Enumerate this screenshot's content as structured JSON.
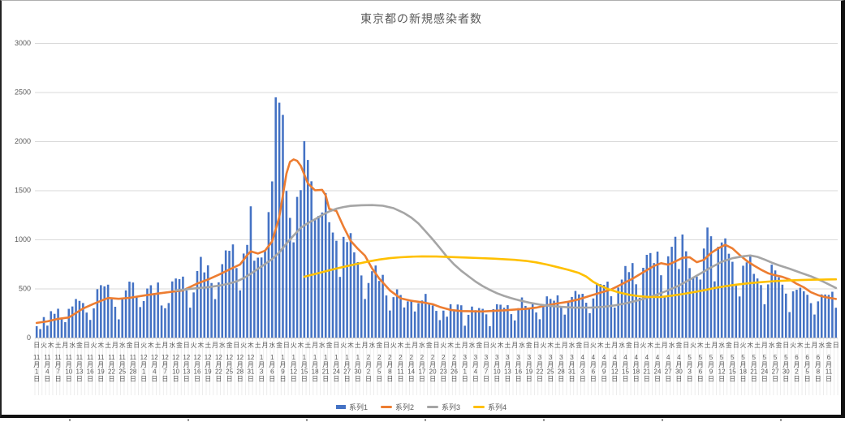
{
  "title": "東京都の新規感染者数",
  "colors": {
    "bar": "#4472C4",
    "series2": "#ED7D31",
    "series3": "#A5A5A5",
    "series4": "#FFC000",
    "gridline": "#D9D9D9",
    "axis_line": "#C6C6C6",
    "label_tick_line": "#E8E8E8",
    "text": "#595959"
  },
  "y_axis": {
    "ticks": [
      0,
      500,
      1000,
      1500,
      2000,
      2500,
      3000
    ],
    "max": 3000
  },
  "x_axis": {
    "weekday_cycle": "日火木土月水金",
    "weekday_label_count": 113,
    "weekday_step_days": 2,
    "date_step_days": 3,
    "date_labels": [
      "11月1日",
      "11月4日",
      "11月7日",
      "11月10日",
      "11月13日",
      "11月16日",
      "11月19日",
      "11月22日",
      "11月25日",
      "11月28日",
      "12月1日",
      "12月4日",
      "12月7日",
      "12月10日",
      "12月13日",
      "12月16日",
      "12月19日",
      "12月22日",
      "12月25日",
      "12月28日",
      "12月31日",
      "1月3日",
      "1月6日",
      "1月9日",
      "1月12日",
      "1月15日",
      "1月18日",
      "1月21日",
      "1月24日",
      "1月27日",
      "1月30日",
      "2月2日",
      "2月5日",
      "2月8日",
      "2月11日",
      "2月14日",
      "2月17日",
      "2月20日",
      "2月23日",
      "2月26日",
      "3月1日",
      "3月4日",
      "3月7日",
      "3月10日",
      "3月13日",
      "3月16日",
      "3月19日",
      "3月22日",
      "3月25日",
      "3月28日",
      "3月31日",
      "4月3日",
      "4月6日",
      "4月9日",
      "4月12日",
      "4月15日",
      "4月18日",
      "4月21日",
      "4月24日",
      "4月27日",
      "4月30日",
      "5月3日",
      "5月6日",
      "5月9日",
      "5月12日",
      "5月15日",
      "5月18日",
      "5月21日",
      "5月24日",
      "5月27日",
      "5月30日",
      "6月2日",
      "6月5日",
      "6月8日",
      "6月11日"
    ]
  },
  "legend": {
    "items": [
      {
        "label": "系列1",
        "type": "bar",
        "color": "#4472C4"
      },
      {
        "label": "系列2",
        "type": "line",
        "color": "#ED7D31"
      },
      {
        "label": "系列3",
        "type": "line",
        "color": "#A5A5A5"
      },
      {
        "label": "系列4",
        "type": "line",
        "color": "#FFC000"
      }
    ]
  },
  "chart_data": {
    "type": "combo-bar-line",
    "title": "東京都の新規感染者数",
    "ylim": [
      0,
      3000
    ],
    "grid": true,
    "legend_position": "bottom",
    "x_days": 225,
    "x_first_label": "11月1日",
    "bar_series": {
      "name": "系列1",
      "values": [
        116,
        87,
        209,
        122,
        269,
        242,
        294,
        189,
        157,
        293,
        317,
        393,
        374,
        352,
        255,
        180,
        298,
        493,
        534,
        522,
        539,
        391,
        314,
        186,
        401,
        481,
        570,
        561,
        418,
        311,
        372,
        500,
        533,
        449,
        561,
        327,
        299,
        352,
        572,
        602,
        595,
        621,
        480,
        305,
        460,
        678,
        822,
        664,
        736,
        556,
        392,
        563,
        748,
        888,
        884,
        949,
        708,
        481,
        856,
        944,
        1337,
        783,
        814,
        816,
        884,
        1278,
        1591,
        2447,
        2392,
        2268,
        1494,
        1219,
        970,
        1433,
        1502,
        2001,
        1809,
        1592,
        1204,
        1240,
        1274,
        1471,
        1175,
        1070,
        986,
        618,
        1026,
        973,
        1064,
        868,
        769,
        633,
        393,
        556,
        676,
        734,
        577,
        639,
        429,
        276,
        412,
        491,
        434,
        307,
        369,
        371,
        266,
        350,
        378,
        445,
        353,
        327,
        272,
        178,
        275,
        213,
        340,
        270,
        337,
        329,
        121,
        232,
        316,
        279,
        301,
        293,
        237,
        116,
        290,
        340,
        335,
        304,
        330,
        239,
        175,
        300,
        409,
        323,
        303,
        342,
        256,
        187,
        337,
        420,
        394,
        376,
        430,
        313,
        234,
        364,
        414,
        475,
        440,
        446,
        355,
        249,
        399,
        555,
        545,
        537,
        570,
        421,
        306,
        510,
        591,
        729,
        667,
        759,
        543,
        405,
        711,
        843,
        861,
        759,
        876,
        635,
        425,
        828,
        925,
        1027,
        698,
        1050,
        879,
        708,
        609,
        621,
        591,
        907,
        1121,
        1032,
        573,
        925,
        969,
        1010,
        854,
        772,
        542,
        419,
        732,
        766,
        843,
        649,
        602,
        535,
        340,
        542,
        743,
        684,
        614,
        539,
        448,
        260,
        471,
        487,
        508,
        472,
        436,
        351,
        235,
        369,
        440,
        439,
        435,
        467,
        304
      ]
    },
    "line_series": [
      {
        "name": "系列2",
        "color": "#ED7D31",
        "points": [
          [
            0,
            150
          ],
          [
            3,
            165
          ],
          [
            6,
            191
          ],
          [
            9,
            205
          ],
          [
            13,
            296
          ],
          [
            16,
            345
          ],
          [
            20,
            403
          ],
          [
            23,
            395
          ],
          [
            26,
            405
          ],
          [
            30,
            428
          ],
          [
            34,
            449
          ],
          [
            38,
            468
          ],
          [
            41,
            481
          ],
          [
            45,
            550
          ],
          [
            48,
            592
          ],
          [
            51,
            640
          ],
          [
            55,
            711
          ],
          [
            57,
            745
          ],
          [
            59,
            840
          ],
          [
            60,
            878
          ],
          [
            62,
            856
          ],
          [
            64,
            885
          ],
          [
            66,
            980
          ],
          [
            68,
            1230
          ],
          [
            70,
            1670
          ],
          [
            71,
            1790
          ],
          [
            72,
            1815
          ],
          [
            73,
            1800
          ],
          [
            74,
            1750
          ],
          [
            76,
            1570
          ],
          [
            78,
            1500
          ],
          [
            80,
            1505
          ],
          [
            81,
            1450
          ],
          [
            82,
            1310
          ],
          [
            84,
            1290
          ],
          [
            86,
            1130
          ],
          [
            88,
            985
          ],
          [
            90,
            905
          ],
          [
            92,
            835
          ],
          [
            94,
            705
          ],
          [
            96,
            601
          ],
          [
            99,
            480
          ],
          [
            102,
            400
          ],
          [
            105,
            375
          ],
          [
            108,
            360
          ],
          [
            111,
            340
          ],
          [
            113,
            312
          ],
          [
            116,
            282
          ],
          [
            119,
            270
          ],
          [
            122,
            268
          ],
          [
            125,
            266
          ],
          [
            128,
            272
          ],
          [
            131,
            278
          ],
          [
            134,
            286
          ],
          [
            137,
            292
          ],
          [
            140,
            305
          ],
          [
            143,
            330
          ],
          [
            146,
            348
          ],
          [
            149,
            365
          ],
          [
            152,
            390
          ],
          [
            155,
            425
          ],
          [
            158,
            458
          ],
          [
            161,
            490
          ],
          [
            164,
            545
          ],
          [
            167,
            600
          ],
          [
            170,
            665
          ],
          [
            173,
            730
          ],
          [
            175,
            758
          ],
          [
            177,
            742
          ],
          [
            179,
            775
          ],
          [
            181,
            812
          ],
          [
            183,
            818
          ],
          [
            185,
            768
          ],
          [
            187,
            792
          ],
          [
            189,
            862
          ],
          [
            191,
            908
          ],
          [
            193,
            945
          ],
          [
            195,
            908
          ],
          [
            197,
            842
          ],
          [
            199,
            782
          ],
          [
            201,
            735
          ],
          [
            203,
            692
          ],
          [
            205,
            655
          ],
          [
            207,
            635
          ],
          [
            209,
            618
          ],
          [
            211,
            592
          ],
          [
            213,
            548
          ],
          [
            215,
            512
          ],
          [
            217,
            462
          ],
          [
            219,
            432
          ],
          [
            221,
            412
          ],
          [
            223,
            400
          ],
          [
            224,
            393
          ]
        ]
      },
      {
        "name": "系列3",
        "color": "#A5A5A5",
        "points": [
          [
            39,
            480
          ],
          [
            42,
            492
          ],
          [
            45,
            503
          ],
          [
            48,
            513
          ],
          [
            51,
            528
          ],
          [
            54,
            550
          ],
          [
            56,
            572
          ],
          [
            58,
            605
          ],
          [
            60,
            650
          ],
          [
            62,
            700
          ],
          [
            64,
            748
          ],
          [
            66,
            800
          ],
          [
            68,
            868
          ],
          [
            70,
            958
          ],
          [
            72,
            1040
          ],
          [
            74,
            1118
          ],
          [
            76,
            1165
          ],
          [
            78,
            1205
          ],
          [
            80,
            1248
          ],
          [
            82,
            1285
          ],
          [
            84,
            1312
          ],
          [
            86,
            1330
          ],
          [
            88,
            1341
          ],
          [
            91,
            1348
          ],
          [
            94,
            1350
          ],
          [
            97,
            1343
          ],
          [
            100,
            1318
          ],
          [
            103,
            1268
          ],
          [
            105,
            1222
          ],
          [
            107,
            1162
          ],
          [
            109,
            1082
          ],
          [
            111,
            1000
          ],
          [
            113,
            912
          ],
          [
            115,
            822
          ],
          [
            117,
            745
          ],
          [
            119,
            680
          ],
          [
            121,
            625
          ],
          [
            123,
            570
          ],
          [
            125,
            525
          ],
          [
            127,
            486
          ],
          [
            129,
            452
          ],
          [
            131,
            425
          ],
          [
            133,
            402
          ],
          [
            135,
            382
          ],
          [
            138,
            356
          ],
          [
            141,
            336
          ],
          [
            144,
            322
          ],
          [
            147,
            313
          ],
          [
            150,
            307
          ],
          [
            153,
            305
          ],
          [
            156,
            307
          ],
          [
            159,
            314
          ],
          [
            162,
            328
          ],
          [
            165,
            348
          ],
          [
            168,
            374
          ],
          [
            171,
            404
          ],
          [
            174,
            440
          ],
          [
            177,
            482
          ],
          [
            180,
            530
          ],
          [
            183,
            590
          ],
          [
            186,
            652
          ],
          [
            189,
            715
          ],
          [
            192,
            772
          ],
          [
            195,
            808
          ],
          [
            198,
            828
          ],
          [
            200,
            836
          ],
          [
            202,
            822
          ],
          [
            204,
            795
          ],
          [
            206,
            764
          ],
          [
            208,
            736
          ],
          [
            211,
            702
          ],
          [
            214,
            662
          ],
          [
            217,
            624
          ],
          [
            220,
            578
          ],
          [
            222,
            542
          ],
          [
            224,
            506
          ]
        ]
      },
      {
        "name": "系列4",
        "color": "#FFC000",
        "points": [
          [
            75,
            620
          ],
          [
            78,
            648
          ],
          [
            81,
            676
          ],
          [
            84,
            703
          ],
          [
            87,
            728
          ],
          [
            90,
            752
          ],
          [
            93,
            775
          ],
          [
            96,
            795
          ],
          [
            99,
            809
          ],
          [
            102,
            818
          ],
          [
            105,
            824
          ],
          [
            108,
            827
          ],
          [
            112,
            826
          ],
          [
            116,
            821
          ],
          [
            120,
            816
          ],
          [
            124,
            810
          ],
          [
            128,
            804
          ],
          [
            131,
            798
          ],
          [
            134,
            792
          ],
          [
            137,
            782
          ],
          [
            140,
            766
          ],
          [
            143,
            744
          ],
          [
            146,
            717
          ],
          [
            149,
            690
          ],
          [
            152,
            658
          ],
          [
            154,
            622
          ],
          [
            156,
            568
          ],
          [
            158,
            528
          ],
          [
            160,
            496
          ],
          [
            163,
            462
          ],
          [
            166,
            436
          ],
          [
            169,
            421
          ],
          [
            172,
            413
          ],
          [
            175,
            414
          ],
          [
            178,
            427
          ],
          [
            181,
            443
          ],
          [
            184,
            462
          ],
          [
            187,
            482
          ],
          [
            190,
            505
          ],
          [
            193,
            523
          ],
          [
            196,
            539
          ],
          [
            199,
            551
          ],
          [
            202,
            561
          ],
          [
            205,
            570
          ],
          [
            208,
            577
          ],
          [
            211,
            582
          ],
          [
            214,
            586
          ],
          [
            217,
            589
          ],
          [
            220,
            591
          ],
          [
            224,
            593
          ]
        ]
      }
    ]
  }
}
